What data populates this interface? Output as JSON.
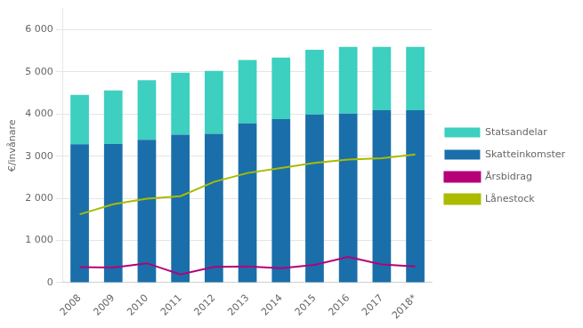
{
  "chart_data": {
    "type": "bar",
    "stacked": true,
    "ylabel": "€/invånare",
    "categories": [
      "2008",
      "2009",
      "2010",
      "2011",
      "2012",
      "2013",
      "2014",
      "2015",
      "2016",
      "2017",
      "2018*"
    ],
    "series": [
      {
        "name": "Skatteinkomster",
        "type": "bar",
        "color": "#1A6FAA",
        "values": [
          3280,
          3290,
          3390,
          3510,
          3530,
          3780,
          3880,
          3990,
          4010,
          4090,
          4090
        ]
      },
      {
        "name": "Statsandelar",
        "type": "bar",
        "color": "#3DCFBF",
        "values": [
          1170,
          1270,
          1410,
          1470,
          1490,
          1500,
          1460,
          1530,
          1580,
          1500,
          1500
        ]
      },
      {
        "name": "Årsbidrag",
        "type": "line",
        "color": "#B5007A",
        "values": [
          370,
          360,
          460,
          195,
          375,
          385,
          340,
          420,
          610,
          430,
          385
        ]
      },
      {
        "name": "Lånestock",
        "type": "line",
        "color": "#AABB00",
        "values": [
          1620,
          1860,
          1990,
          2050,
          2390,
          2600,
          2720,
          2840,
          2920,
          2950,
          3040
        ]
      }
    ],
    "ylim": [
      0,
      6500
    ],
    "yticks": [
      0,
      {
        "value": 1000,
        "label": "1 000"
      },
      {
        "value": 2000,
        "label": "2 000"
      },
      {
        "value": 3000,
        "label": "3 000"
      },
      {
        "value": 4000,
        "label": "4 000"
      },
      {
        "value": 5000,
        "label": "5 000"
      },
      {
        "value": 6000,
        "label": "6 000"
      }
    ],
    "grid": true,
    "legend": "right"
  }
}
